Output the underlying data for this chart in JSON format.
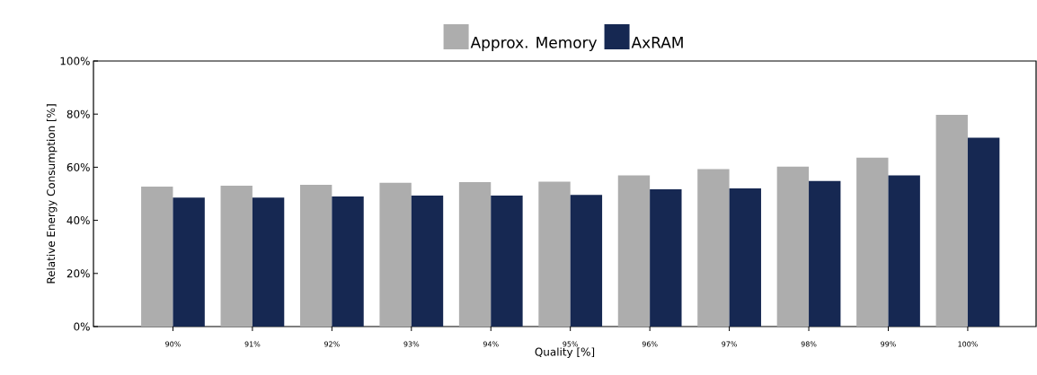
{
  "chart_data": {
    "type": "bar",
    "xlabel": "Quality [%]",
    "ylabel": "Relative Energy Consumption [%]",
    "categories": [
      "90%",
      "91%",
      "92%",
      "93%",
      "94%",
      "95%",
      "96%",
      "97%",
      "98%",
      "99%",
      "100%"
    ],
    "series": [
      {
        "name": "Approx. Memory",
        "color": "#adadad",
        "values": [
          52.7,
          53.0,
          53.4,
          54.1,
          54.4,
          54.6,
          56.9,
          59.3,
          60.2,
          63.6,
          79.7
        ]
      },
      {
        "name": "AxRAM",
        "color": "#162852",
        "values": [
          48.6,
          48.6,
          49.0,
          49.3,
          49.3,
          49.6,
          51.7,
          52.0,
          54.8,
          56.9,
          71.1
        ]
      }
    ],
    "ylim": [
      0,
      100
    ],
    "yticks": [
      {
        "value": 0,
        "label": "0%"
      },
      {
        "value": 20,
        "label": "20%"
      },
      {
        "value": 40,
        "label": "40%"
      },
      {
        "value": 60,
        "label": "60%"
      },
      {
        "value": 80,
        "label": "80%"
      },
      {
        "value": 100,
        "label": "100%"
      }
    ],
    "grid": false,
    "legend": "top"
  }
}
